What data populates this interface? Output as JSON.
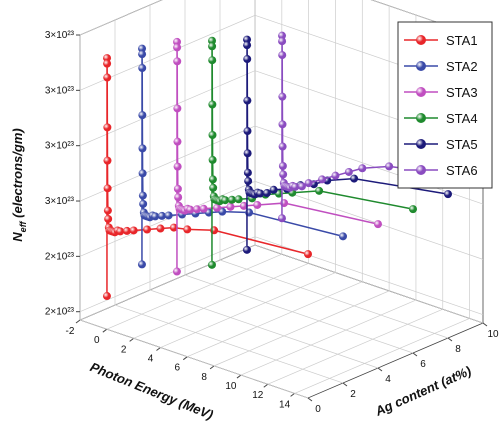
{
  "chart_data": {
    "type": "line3d",
    "xlabel": "Photon Energy (MeV)",
    "ylabel": "Ag content (at%)",
    "zlabel": [
      "N",
      "eff",
      " (electrons/gm)"
    ],
    "x": [
      0.01,
      0.015,
      0.02,
      0.03,
      0.04,
      0.05,
      0.06,
      0.08,
      0.1,
      0.15,
      0.2,
      0.3,
      0.4,
      0.5,
      0.6,
      0.8,
      1,
      1.5,
      2,
      3,
      4,
      5,
      6,
      8,
      15
    ],
    "xlim": [
      -2,
      15
    ],
    "xticks": [
      -2,
      0,
      2,
      4,
      6,
      8,
      10,
      12,
      14
    ],
    "ylim": [
      0,
      10
    ],
    "yticks": [
      0,
      2,
      4,
      6,
      8,
      10
    ],
    "zlim": [
      2.17e+23,
      3.2e+23
    ],
    "zticks": [
      {
        "value": 2.2e+23,
        "label": "2×10²³"
      },
      {
        "value": 2.4e+23,
        "label": "2×10²³"
      },
      {
        "value": 2.6e+23,
        "label": "3×10²³"
      },
      {
        "value": 2.8e+23,
        "label": "3×10²³"
      },
      {
        "value": 3e+23,
        "label": "3×10²³"
      },
      {
        "value": 3.2e+23,
        "label": "3×10²³"
      }
    ],
    "grid": true,
    "legend": "upper right",
    "series": [
      {
        "name": "STA1",
        "color": "#e8262a",
        "ag_content": 0,
        "values": [
          2.29e+23,
          3.15e+23,
          3.13e+23,
          3.08e+23,
          2.9e+23,
          2.78e+23,
          2.68e+23,
          2.6e+23,
          2.57e+23,
          2.54e+23,
          2.53e+23,
          2.53e+23,
          2.53e+23,
          2.53e+23,
          2.53e+23,
          2.54e+23,
          2.54e+23,
          2.55e+23,
          2.56e+23,
          2.58e+23,
          2.6e+23,
          2.62e+23,
          2.63e+23,
          2.66e+23,
          2.69e+23
        ]
      },
      {
        "name": "STA2",
        "color": "#3a4aa8",
        "ag_content": 2,
        "values": [
          2.35e+23,
          3.13e+23,
          3.11e+23,
          3.06e+23,
          2.89e+23,
          2.77e+23,
          2.68e+23,
          2.6e+23,
          2.57e+23,
          2.54e+23,
          2.53e+23,
          2.53e+23,
          2.53e+23,
          2.53e+23,
          2.53e+23,
          2.54e+23,
          2.54e+23,
          2.55e+23,
          2.56e+23,
          2.58e+23,
          2.6e+23,
          2.62e+23,
          2.64e+23,
          2.67e+23,
          2.7e+23
        ]
      },
      {
        "name": "STA3",
        "color": "#c04fc0",
        "ag_content": 4,
        "values": [
          2.27e+23,
          3.1e+23,
          3.08e+23,
          3.03e+23,
          2.86e+23,
          2.74e+23,
          2.65e+23,
          2.57e+23,
          2.54e+23,
          2.51e+23,
          2.5e+23,
          2.5e+23,
          2.5e+23,
          2.5e+23,
          2.5e+23,
          2.51e+23,
          2.51e+23,
          2.52e+23,
          2.53e+23,
          2.55e+23,
          2.57e+23,
          2.59e+23,
          2.61e+23,
          2.65e+23,
          2.69e+23
        ]
      },
      {
        "name": "STA4",
        "color": "#1f8a2e",
        "ag_content": 6,
        "values": [
          2.24e+23,
          3.05e+23,
          3.03e+23,
          2.98e+23,
          2.82e+23,
          2.71e+23,
          2.62e+23,
          2.55e+23,
          2.52e+23,
          2.49e+23,
          2.48e+23,
          2.48e+23,
          2.48e+23,
          2.48e+23,
          2.48e+23,
          2.49e+23,
          2.49e+23,
          2.5e+23,
          2.51e+23,
          2.53e+23,
          2.56e+23,
          2.58e+23,
          2.6e+23,
          2.64e+23,
          2.69e+23
        ]
      },
      {
        "name": "STA5",
        "color": "#1c1a7a",
        "ag_content": 8,
        "values": [
          2.24e+23,
          3e+23,
          2.98e+23,
          2.93e+23,
          2.78e+23,
          2.67e+23,
          2.59e+23,
          2.52e+23,
          2.49e+23,
          2.46e+23,
          2.45e+23,
          2.45e+23,
          2.45e+23,
          2.45e+23,
          2.45e+23,
          2.46e+23,
          2.46e+23,
          2.47e+23,
          2.49e+23,
          2.51e+23,
          2.54e+23,
          2.56e+23,
          2.59e+23,
          2.63e+23,
          2.69e+23
        ]
      },
      {
        "name": "STA6",
        "color": "#8a4cc0",
        "ag_content": 10,
        "values": [
          2.3e+23,
          2.96e+23,
          2.94e+23,
          2.89e+23,
          2.74e+23,
          2.64e+23,
          2.56e+23,
          2.49e+23,
          2.46e+23,
          2.43e+23,
          2.42e+23,
          2.42e+23,
          2.42e+23,
          2.42e+23,
          2.42e+23,
          2.43e+23,
          2.43e+23,
          2.44e+23,
          2.46e+23,
          2.49e+23,
          2.52e+23,
          2.55e+23,
          2.58e+23,
          2.62e+23,
          2.69e+23
        ]
      }
    ]
  }
}
